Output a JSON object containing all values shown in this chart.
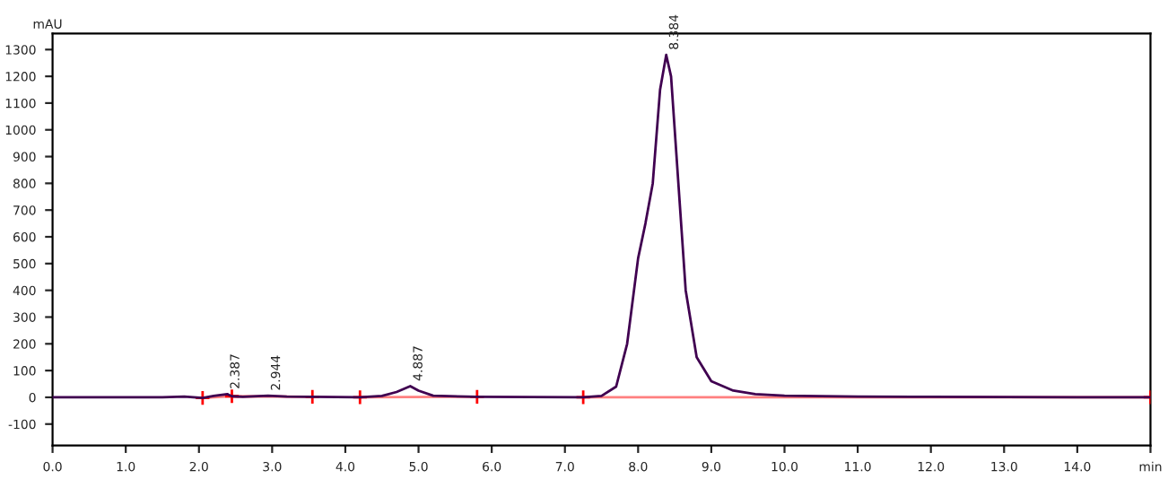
{
  "chart_data": {
    "type": "line",
    "ylabel": "mAU",
    "xlim": [
      0,
      15
    ],
    "ylim": [
      -180,
      1360
    ],
    "xticks": [
      {
        "value": 0,
        "label": "0.0"
      },
      {
        "value": 1,
        "label": "1.0"
      },
      {
        "value": 2,
        "label": "2.0"
      },
      {
        "value": 3,
        "label": "3.0"
      },
      {
        "value": 4,
        "label": "4.0"
      },
      {
        "value": 5,
        "label": "5.0"
      },
      {
        "value": 6,
        "label": "6.0"
      },
      {
        "value": 7,
        "label": "7.0"
      },
      {
        "value": 8,
        "label": "8.0"
      },
      {
        "value": 9,
        "label": "9.0"
      },
      {
        "value": 10,
        "label": "10.0"
      },
      {
        "value": 11,
        "label": "11.0"
      },
      {
        "value": 12,
        "label": "12.0"
      },
      {
        "value": 13,
        "label": "13.0"
      },
      {
        "value": 14,
        "label": "14.0"
      },
      {
        "value": 15,
        "label": "min"
      }
    ],
    "yticks": [
      -100,
      0,
      100,
      200,
      300,
      400,
      500,
      600,
      700,
      800,
      900,
      1000,
      1100,
      1200,
      1300
    ],
    "grid": false,
    "series": [
      {
        "color": "#400050",
        "marker": "none",
        "x": [
          0,
          1.5,
          1.8,
          2.05,
          2.2,
          2.387,
          2.45,
          2.6,
          2.944,
          3.2,
          3.55,
          4.2,
          4.5,
          4.7,
          4.887,
          5.0,
          5.2,
          5.8,
          7.25,
          7.5,
          7.7,
          7.85,
          8.0,
          8.1,
          8.2,
          8.3,
          8.384,
          8.45,
          8.55,
          8.65,
          8.8,
          9.0,
          9.3,
          9.6,
          10,
          11,
          12,
          13,
          14,
          15
        ],
        "values": [
          0,
          0,
          3,
          -2,
          5,
          12,
          4,
          2,
          6,
          3,
          2,
          0,
          5,
          20,
          42,
          25,
          6,
          2,
          0,
          5,
          40,
          200,
          520,
          650,
          800,
          1150,
          1280,
          1200,
          800,
          400,
          150,
          60,
          25,
          12,
          6,
          3,
          2,
          1,
          0,
          0
        ]
      },
      {
        "type": "line",
        "color": "#ff8080",
        "marker": "none",
        "x": [
          2.05,
          2.45,
          3.55,
          3.9,
          4.2,
          5.8,
          6.5,
          7.25,
          15
        ],
        "values": [
          -2,
          4,
          2,
          null,
          0,
          2,
          null,
          0,
          0
        ]
      },
      {
        "type": "scatter",
        "color": "#ff0000",
        "marker": "cross",
        "x": [
          2.05,
          2.45,
          3.55,
          4.2,
          5.8,
          7.25,
          15
        ],
        "values": [
          -2,
          4,
          2,
          0,
          2,
          0,
          0
        ]
      }
    ],
    "annotations": [
      {
        "text": "2.387",
        "x": 2.387,
        "y": 12
      },
      {
        "text": "2.944",
        "x": 2.944,
        "y": 6
      },
      {
        "text": "4.887",
        "x": 4.887,
        "y": 42
      },
      {
        "text": "8.384",
        "x": 8.384,
        "y": 1280
      }
    ]
  }
}
